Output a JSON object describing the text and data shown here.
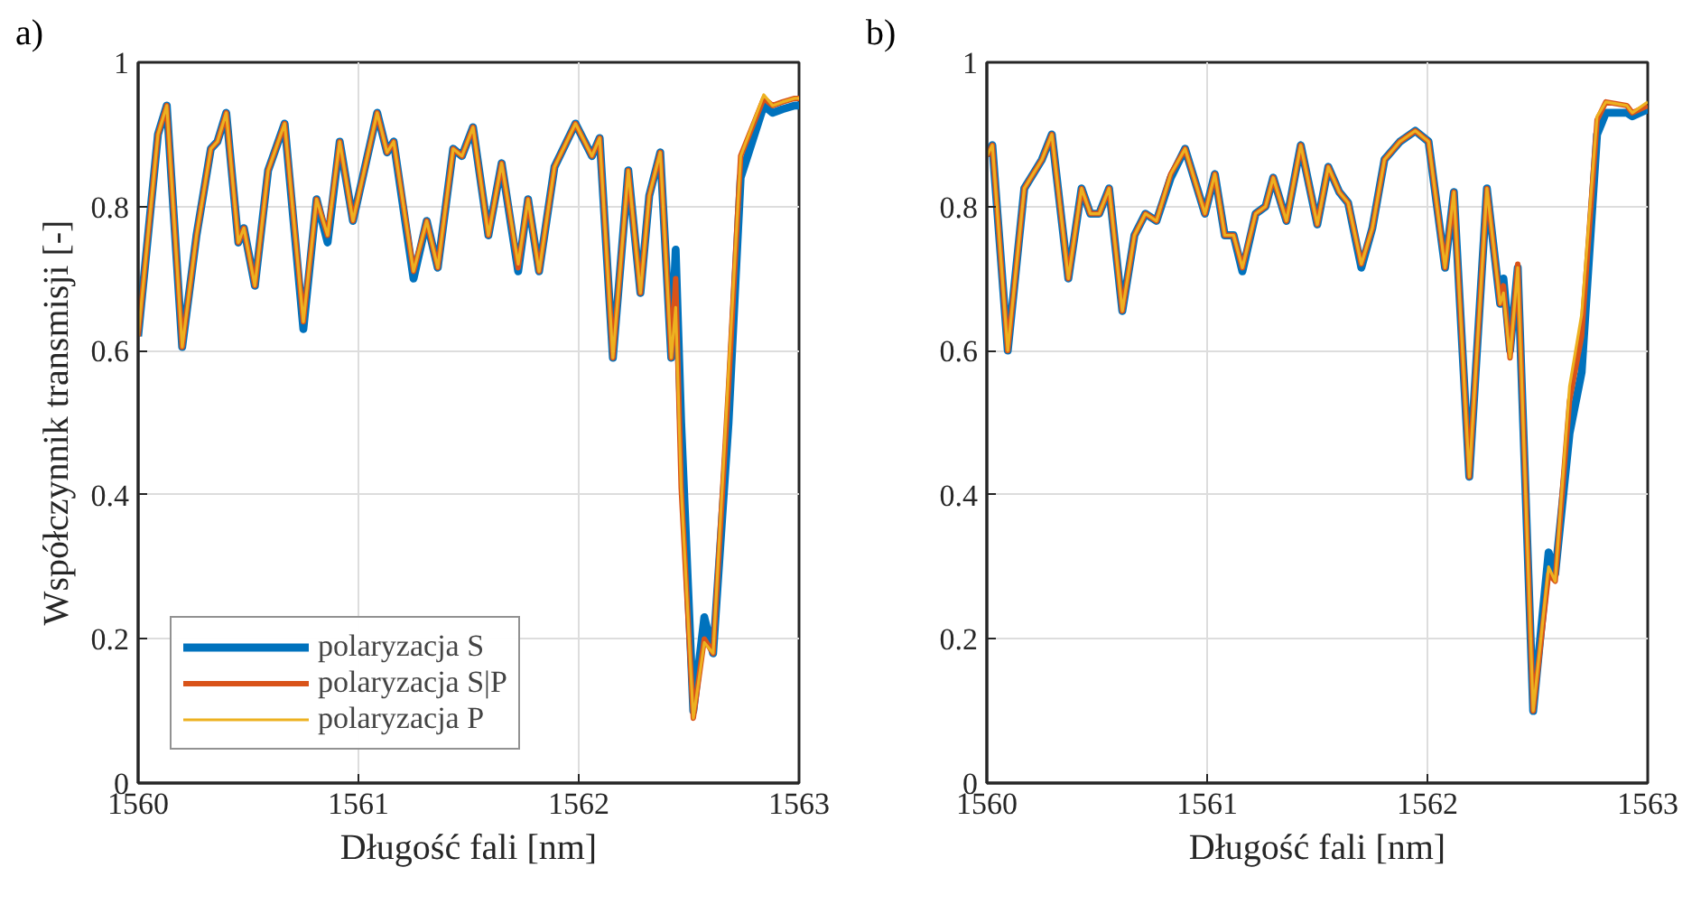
{
  "chart_data": [
    {
      "type": "line",
      "xlabel": "Długość fali [nm]",
      "ylabel": "Współczynnik transmisji [-]",
      "annotations": [
        "a)"
      ],
      "xlim": [
        1560,
        1563
      ],
      "xticks": [
        1560,
        1561,
        1562,
        1563
      ],
      "ylim": [
        0,
        1
      ],
      "yticks": [
        0,
        0.2,
        0.4,
        0.6,
        0.8,
        1
      ],
      "grid": true,
      "legend": "bottom left",
      "x": [
        1560,
        1560.09,
        1560.13,
        1560.2,
        1560.265,
        1560.33,
        1560.36,
        1560.4,
        1560.455,
        1560.48,
        1560.53,
        1560.59,
        1560.665,
        1560.75,
        1560.81,
        1560.86,
        1560.915,
        1560.975,
        1561.085,
        1561.13,
        1561.16,
        1561.25,
        1561.31,
        1561.36,
        1561.43,
        1561.47,
        1561.52,
        1561.59,
        1561.65,
        1561.725,
        1561.77,
        1561.82,
        1561.89,
        1561.985,
        1562.06,
        1562.095,
        1562.155,
        1562.225,
        1562.28,
        1562.32,
        1562.37,
        1562.42,
        1562.44,
        1562.465,
        1562.52,
        1562.57,
        1562.61,
        1562.68,
        1562.735,
        1562.84,
        1562.88,
        1562.925,
        1562.98,
        1563
      ],
      "series": [
        {
          "name": "polaryzacja S",
          "color": "#0072bd",
          "values": [
            0.62,
            0.9,
            0.94,
            0.605,
            0.76,
            0.88,
            0.89,
            0.93,
            0.75,
            0.77,
            0.69,
            0.85,
            0.915,
            0.63,
            0.81,
            0.75,
            0.89,
            0.78,
            0.93,
            0.875,
            0.89,
            0.7,
            0.78,
            0.715,
            0.88,
            0.87,
            0.91,
            0.76,
            0.86,
            0.71,
            0.81,
            0.71,
            0.855,
            0.915,
            0.87,
            0.895,
            0.59,
            0.85,
            0.68,
            0.815,
            0.875,
            0.59,
            0.74,
            0.5,
            0.1,
            0.23,
            0.18,
            0.5,
            0.84,
            0.94,
            0.93,
            0.935,
            0.94,
            0.94
          ]
        },
        {
          "name": "polaryzacja S|P",
          "color": "#d95319",
          "values": [
            0.62,
            0.9,
            0.94,
            0.605,
            0.76,
            0.88,
            0.89,
            0.93,
            0.75,
            0.77,
            0.69,
            0.85,
            0.915,
            0.64,
            0.81,
            0.76,
            0.89,
            0.78,
            0.93,
            0.875,
            0.89,
            0.71,
            0.78,
            0.715,
            0.88,
            0.87,
            0.91,
            0.76,
            0.86,
            0.715,
            0.81,
            0.71,
            0.855,
            0.915,
            0.87,
            0.895,
            0.59,
            0.85,
            0.68,
            0.815,
            0.875,
            0.59,
            0.7,
            0.41,
            0.09,
            0.2,
            0.18,
            0.55,
            0.87,
            0.95,
            0.94,
            0.945,
            0.95,
            0.95
          ]
        },
        {
          "name": "polaryzacja P",
          "color": "#edb120",
          "values": [
            0.62,
            0.9,
            0.94,
            0.605,
            0.76,
            0.88,
            0.89,
            0.93,
            0.75,
            0.77,
            0.69,
            0.85,
            0.915,
            0.64,
            0.81,
            0.76,
            0.89,
            0.78,
            0.93,
            0.875,
            0.89,
            0.71,
            0.78,
            0.715,
            0.88,
            0.87,
            0.91,
            0.76,
            0.86,
            0.72,
            0.81,
            0.71,
            0.855,
            0.915,
            0.87,
            0.895,
            0.59,
            0.85,
            0.68,
            0.815,
            0.875,
            0.59,
            0.66,
            0.41,
            0.09,
            0.195,
            0.18,
            0.57,
            0.87,
            0.955,
            0.94,
            0.945,
            0.95,
            0.95
          ]
        }
      ]
    },
    {
      "type": "line",
      "xlabel": "Długość fali [nm]",
      "annotations": [
        "b)"
      ],
      "xlim": [
        1560,
        1563
      ],
      "xticks": [
        1560,
        1561,
        1562,
        1563
      ],
      "ylim": [
        0,
        1
      ],
      "yticks": [
        0,
        0.2,
        0.4,
        0.6,
        0.8,
        1
      ],
      "grid": true,
      "x": [
        1560,
        1560.025,
        1560.095,
        1560.17,
        1560.21,
        1560.25,
        1560.295,
        1560.37,
        1560.43,
        1560.47,
        1560.51,
        1560.555,
        1560.615,
        1560.67,
        1560.72,
        1560.77,
        1560.835,
        1560.9,
        1560.99,
        1561.035,
        1561.08,
        1561.12,
        1561.16,
        1561.22,
        1561.265,
        1561.3,
        1561.36,
        1561.425,
        1561.5,
        1561.55,
        1561.6,
        1561.64,
        1561.7,
        1561.75,
        1561.805,
        1561.875,
        1561.945,
        1562.005,
        1562.08,
        1562.12,
        1562.19,
        1562.27,
        1562.33,
        1562.345,
        1562.375,
        1562.41,
        1562.48,
        1562.55,
        1562.58,
        1562.645,
        1562.7,
        1562.77,
        1562.81,
        1562.905,
        1562.93,
        1563
      ],
      "series": [
        {
          "color": "#0072bd",
          "values": [
            0.87,
            0.885,
            0.6,
            0.825,
            0.845,
            0.865,
            0.9,
            0.7,
            0.825,
            0.79,
            0.79,
            0.825,
            0.655,
            0.76,
            0.79,
            0.78,
            0.84,
            0.88,
            0.79,
            0.845,
            0.76,
            0.76,
            0.71,
            0.79,
            0.8,
            0.84,
            0.78,
            0.885,
            0.775,
            0.855,
            0.82,
            0.805,
            0.715,
            0.77,
            0.865,
            0.89,
            0.905,
            0.89,
            0.715,
            0.82,
            0.425,
            0.825,
            0.665,
            0.7,
            0.6,
            0.715,
            0.1,
            0.32,
            0.29,
            0.485,
            0.57,
            0.9,
            0.93,
            0.93,
            0.925,
            0.935
          ]
        },
        {
          "color": "#d95319",
          "values": [
            0.87,
            0.885,
            0.6,
            0.825,
            0.845,
            0.865,
            0.9,
            0.7,
            0.825,
            0.79,
            0.79,
            0.825,
            0.655,
            0.76,
            0.79,
            0.78,
            0.845,
            0.88,
            0.79,
            0.845,
            0.76,
            0.76,
            0.715,
            0.79,
            0.8,
            0.84,
            0.78,
            0.885,
            0.775,
            0.855,
            0.82,
            0.805,
            0.72,
            0.77,
            0.865,
            0.89,
            0.905,
            0.89,
            0.715,
            0.82,
            0.425,
            0.825,
            0.665,
            0.69,
            0.59,
            0.72,
            0.1,
            0.29,
            0.28,
            0.53,
            0.62,
            0.92,
            0.945,
            0.94,
            0.93,
            0.94
          ]
        },
        {
          "color": "#edb120",
          "values": [
            0.87,
            0.885,
            0.6,
            0.825,
            0.845,
            0.865,
            0.9,
            0.7,
            0.825,
            0.79,
            0.79,
            0.825,
            0.655,
            0.76,
            0.79,
            0.78,
            0.845,
            0.88,
            0.79,
            0.845,
            0.76,
            0.76,
            0.715,
            0.79,
            0.8,
            0.84,
            0.78,
            0.885,
            0.775,
            0.855,
            0.82,
            0.805,
            0.72,
            0.77,
            0.865,
            0.89,
            0.905,
            0.89,
            0.715,
            0.82,
            0.425,
            0.825,
            0.665,
            0.68,
            0.59,
            0.715,
            0.1,
            0.3,
            0.28,
            0.55,
            0.65,
            0.925,
            0.945,
            0.94,
            0.93,
            0.945
          ]
        }
      ]
    }
  ]
}
